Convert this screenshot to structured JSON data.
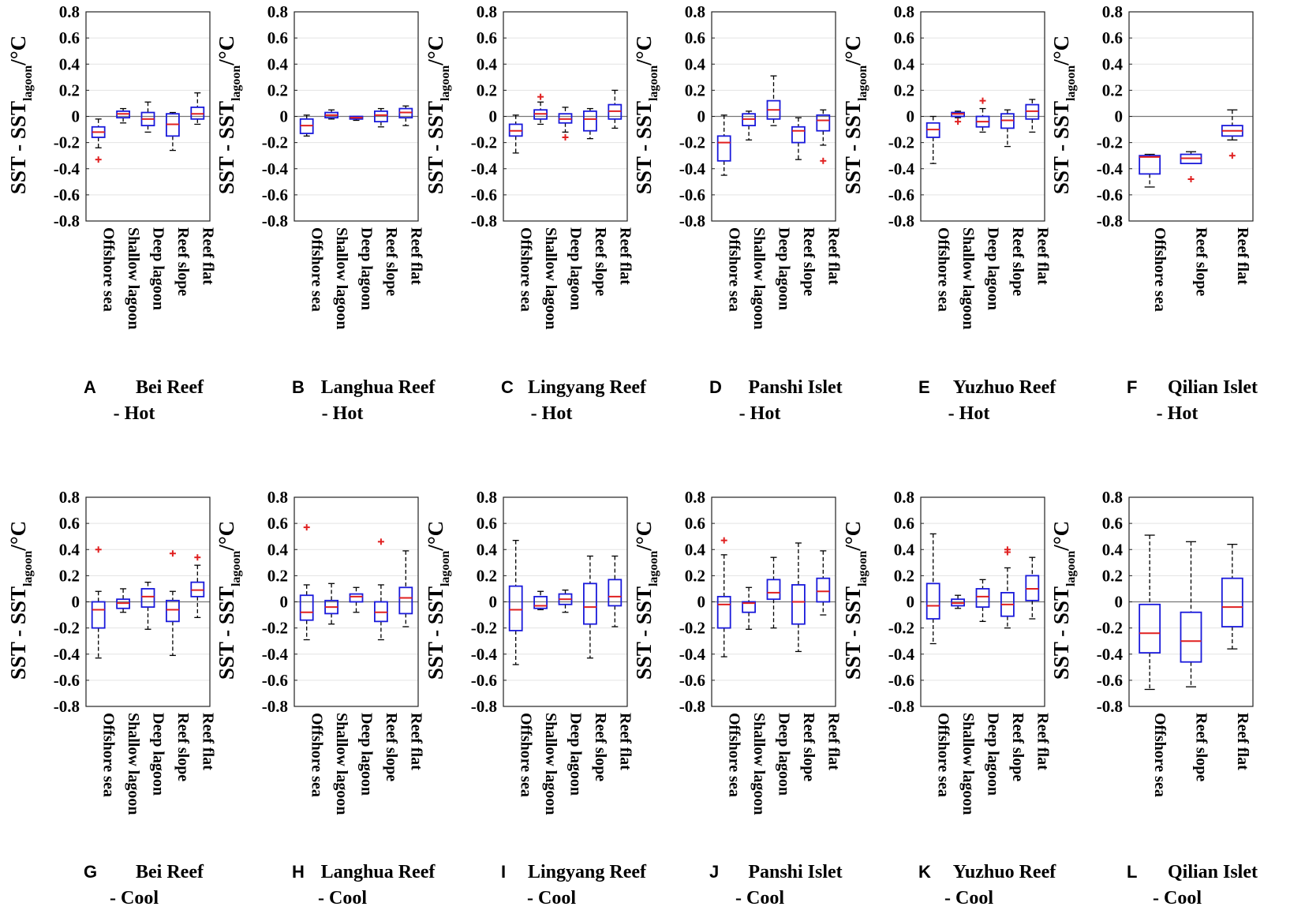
{
  "figure": {
    "ylabel_main": "SST - SST",
    "ylabel_sub": "lagoon",
    "ylabel_unit": "/°C"
  },
  "chart_data": [
    {
      "type": "boxplot",
      "panel": "A",
      "title_line1": "Bei Reef",
      "title_line2": "- Hot",
      "ylabel": "SST - SSTlagoon /°C",
      "ylim": [
        -0.8,
        0.8
      ],
      "yticks": [
        "0.8",
        "0.6",
        "0.4",
        "0.2",
        "0",
        "-0.2",
        "-0.4",
        "-0.6",
        "-0.8"
      ],
      "categories": [
        "Offshore sea",
        "Shallow lagoon",
        "Deep lagoon",
        "Reef slope",
        "Reef flat"
      ],
      "boxes": [
        {
          "min": -0.24,
          "q1": -0.16,
          "median": -0.12,
          "q3": -0.08,
          "max": -0.02,
          "outliers": [
            -0.33
          ]
        },
        {
          "min": -0.05,
          "q1": -0.01,
          "median": 0.02,
          "q3": 0.04,
          "max": 0.06,
          "outliers": []
        },
        {
          "min": -0.12,
          "q1": -0.07,
          "median": -0.02,
          "q3": 0.03,
          "max": 0.11,
          "outliers": []
        },
        {
          "min": -0.26,
          "q1": -0.15,
          "median": -0.06,
          "q3": 0.02,
          "max": 0.03,
          "outliers": []
        },
        {
          "min": -0.06,
          "q1": -0.02,
          "median": 0.02,
          "q3": 0.07,
          "max": 0.18,
          "outliers": []
        }
      ]
    },
    {
      "type": "boxplot",
      "panel": "B",
      "title_line1": "Langhua Reef",
      "title_line2": "- Hot",
      "ylabel": "SST - SSTlagoon /°C",
      "ylim": [
        -0.8,
        0.8
      ],
      "yticks": [
        "0.8",
        "0.6",
        "0.4",
        "0.2",
        "0",
        "-0.2",
        "-0.4",
        "-0.6",
        "-0.8"
      ],
      "categories": [
        "Offshore sea",
        "Shallow lagoon",
        "Deep lagoon",
        "Reef slope",
        "Reef flat"
      ],
      "boxes": [
        {
          "min": -0.15,
          "q1": -0.13,
          "median": -0.07,
          "q3": -0.02,
          "max": 0.01,
          "outliers": []
        },
        {
          "min": -0.02,
          "q1": -0.01,
          "median": 0.01,
          "q3": 0.03,
          "max": 0.05,
          "outliers": []
        },
        {
          "min": -0.03,
          "q1": -0.02,
          "median": -0.01,
          "q3": 0.0,
          "max": 0.0,
          "outliers": []
        },
        {
          "min": -0.08,
          "q1": -0.04,
          "median": 0.01,
          "q3": 0.04,
          "max": 0.06,
          "outliers": []
        },
        {
          "min": -0.07,
          "q1": -0.01,
          "median": 0.03,
          "q3": 0.06,
          "max": 0.08,
          "outliers": []
        }
      ]
    },
    {
      "type": "boxplot",
      "panel": "C",
      "title_line1": "Lingyang Reef",
      "title_line2": "- Hot",
      "ylabel": "SST - SSTlagoon /°C",
      "ylim": [
        -0.8,
        0.8
      ],
      "yticks": [
        "0.8",
        "0.6",
        "0.4",
        "0.2",
        "0",
        "-0.2",
        "-0.4",
        "-0.6",
        "-0.8"
      ],
      "categories": [
        "Offshore sea",
        "Shallow lagoon",
        "Deep lagoon",
        "Reef slope",
        "Reef flat"
      ],
      "boxes": [
        {
          "min": -0.28,
          "q1": -0.15,
          "median": -0.11,
          "q3": -0.06,
          "max": 0.01,
          "outliers": []
        },
        {
          "min": -0.06,
          "q1": -0.02,
          "median": 0.02,
          "q3": 0.05,
          "max": 0.11,
          "outliers": [
            0.15
          ]
        },
        {
          "min": -0.12,
          "q1": -0.05,
          "median": -0.02,
          "q3": 0.02,
          "max": 0.07,
          "outliers": [
            -0.16
          ]
        },
        {
          "min": -0.17,
          "q1": -0.11,
          "median": -0.02,
          "q3": 0.04,
          "max": 0.06,
          "outliers": []
        },
        {
          "min": -0.09,
          "q1": -0.02,
          "median": 0.04,
          "q3": 0.09,
          "max": 0.2,
          "outliers": []
        }
      ]
    },
    {
      "type": "boxplot",
      "panel": "D",
      "title_line1": "Panshi Islet",
      "title_line2": "- Hot",
      "ylabel": "SST - SSTlagoon /°C",
      "ylim": [
        -0.8,
        0.8
      ],
      "yticks": [
        "0.8",
        "0.6",
        "0.4",
        "0.2",
        "0",
        "-0.2",
        "-0.4",
        "-0.6",
        "-0.8"
      ],
      "categories": [
        "Offshore sea",
        "Shallow lagoon",
        "Deep lagoon",
        "Reef slope",
        "Reef flat"
      ],
      "boxes": [
        {
          "min": -0.45,
          "q1": -0.34,
          "median": -0.2,
          "q3": -0.15,
          "max": 0.01,
          "outliers": []
        },
        {
          "min": -0.18,
          "q1": -0.07,
          "median": -0.02,
          "q3": 0.02,
          "max": 0.04,
          "outliers": []
        },
        {
          "min": -0.07,
          "q1": -0.02,
          "median": 0.05,
          "q3": 0.12,
          "max": 0.31,
          "outliers": []
        },
        {
          "min": -0.33,
          "q1": -0.2,
          "median": -0.11,
          "q3": -0.08,
          "max": -0.01,
          "outliers": []
        },
        {
          "min": -0.22,
          "q1": -0.11,
          "median": -0.03,
          "q3": 0.01,
          "max": 0.05,
          "outliers": [
            -0.34
          ]
        }
      ]
    },
    {
      "type": "boxplot",
      "panel": "E",
      "title_line1": "Yuzhuo Reef",
      "title_line2": "- Hot",
      "ylabel": "SST - SSTlagoon /°C",
      "ylim": [
        -0.8,
        0.8
      ],
      "yticks": [
        "0.8",
        "0.6",
        "0.4",
        "0.2",
        "0",
        "-0.2",
        "-0.4",
        "-0.6",
        "-0.8"
      ],
      "categories": [
        "Offshore sea",
        "Shallow lagoon",
        "Deep lagoon",
        "Reef slope",
        "Reef flat"
      ],
      "boxes": [
        {
          "min": -0.36,
          "q1": -0.16,
          "median": -0.1,
          "q3": -0.05,
          "max": 0.0,
          "outliers": []
        },
        {
          "min": -0.01,
          "q1": 0.0,
          "median": 0.02,
          "q3": 0.03,
          "max": 0.04,
          "outliers": [
            -0.04
          ]
        },
        {
          "min": -0.12,
          "q1": -0.08,
          "median": -0.04,
          "q3": 0.0,
          "max": 0.06,
          "outliers": [
            0.12
          ]
        },
        {
          "min": -0.23,
          "q1": -0.09,
          "median": -0.03,
          "q3": 0.02,
          "max": 0.05,
          "outliers": []
        },
        {
          "min": -0.12,
          "q1": -0.02,
          "median": 0.04,
          "q3": 0.09,
          "max": 0.13,
          "outliers": []
        }
      ]
    },
    {
      "type": "boxplot",
      "panel": "F",
      "title_line1": "Qilian Islet",
      "title_line2": "- Hot",
      "ylabel": "SST - SSTlagoon /°C",
      "ylim": [
        -0.8,
        0.8
      ],
      "yticks": [
        "0.8",
        "0.6",
        "0.4",
        "0.2",
        "0",
        "-0.2",
        "-0.4",
        "-0.6",
        "-0.8"
      ],
      "categories": [
        "Offshore sea",
        "Reef slope",
        "Reef flat"
      ],
      "boxes": [
        {
          "min": -0.54,
          "q1": -0.44,
          "median": -0.31,
          "q3": -0.3,
          "max": -0.29,
          "outliers": []
        },
        {
          "min": -0.36,
          "q1": -0.36,
          "median": -0.32,
          "q3": -0.29,
          "max": -0.27,
          "outliers": [
            -0.48
          ]
        },
        {
          "min": -0.18,
          "q1": -0.15,
          "median": -0.11,
          "q3": -0.07,
          "max": 0.05,
          "outliers": [
            -0.3
          ]
        }
      ]
    },
    {
      "type": "boxplot",
      "panel": "G",
      "title_line1": "Bei Reef",
      "title_line2": "- Cool",
      "ylabel": "SST - SSTlagoon /°C",
      "ylim": [
        -0.8,
        0.8
      ],
      "yticks": [
        "0.8",
        "0.6",
        "0.4",
        "0.2",
        "0",
        "-0.2",
        "-0.4",
        "-0.6",
        "-0.8"
      ],
      "categories": [
        "Offshore sea",
        "Shallow lagoon",
        "Deep lagoon",
        "Reef slope",
        "Reef flat"
      ],
      "boxes": [
        {
          "min": -0.43,
          "q1": -0.2,
          "median": -0.06,
          "q3": 0.0,
          "max": 0.08,
          "outliers": [
            0.4
          ]
        },
        {
          "min": -0.08,
          "q1": -0.05,
          "median": -0.01,
          "q3": 0.02,
          "max": 0.1,
          "outliers": []
        },
        {
          "min": -0.21,
          "q1": -0.04,
          "median": 0.04,
          "q3": 0.1,
          "max": 0.15,
          "outliers": []
        },
        {
          "min": -0.41,
          "q1": -0.15,
          "median": -0.06,
          "q3": 0.01,
          "max": 0.08,
          "outliers": [
            0.37
          ]
        },
        {
          "min": -0.12,
          "q1": 0.04,
          "median": 0.09,
          "q3": 0.15,
          "max": 0.28,
          "outliers": [
            0.34
          ]
        }
      ]
    },
    {
      "type": "boxplot",
      "panel": "H",
      "title_line1": "Langhua Reef",
      "title_line2": "- Cool",
      "ylabel": "SST - SSTlagoon /°C",
      "ylim": [
        -0.8,
        0.8
      ],
      "yticks": [
        "0.8",
        "0.6",
        "0.4",
        "0.2",
        "0",
        "-0.2",
        "-0.4",
        "-0.6",
        "-0.8"
      ],
      "categories": [
        "Offshore sea",
        "Shallow lagoon",
        "Deep lagoon",
        "Reef slope",
        "Reef flat"
      ],
      "boxes": [
        {
          "min": -0.29,
          "q1": -0.14,
          "median": -0.08,
          "q3": 0.05,
          "max": 0.13,
          "outliers": [
            0.57
          ]
        },
        {
          "min": -0.17,
          "q1": -0.09,
          "median": -0.04,
          "q3": 0.01,
          "max": 0.14,
          "outliers": []
        },
        {
          "min": -0.08,
          "q1": 0.0,
          "median": 0.04,
          "q3": 0.06,
          "max": 0.11,
          "outliers": []
        },
        {
          "min": -0.29,
          "q1": -0.15,
          "median": -0.08,
          "q3": 0.0,
          "max": 0.13,
          "outliers": [
            0.46
          ]
        },
        {
          "min": -0.19,
          "q1": -0.09,
          "median": 0.03,
          "q3": 0.11,
          "max": 0.39,
          "outliers": []
        }
      ]
    },
    {
      "type": "boxplot",
      "panel": "I",
      "title_line1": "Lingyang Reef",
      "title_line2": "- Cool",
      "ylabel": "SST - SSTlagoon /°C",
      "ylim": [
        -0.8,
        0.8
      ],
      "yticks": [
        "0.8",
        "0.6",
        "0.4",
        "0.2",
        "0",
        "-0.2",
        "-0.4",
        "-0.6",
        "-0.8"
      ],
      "categories": [
        "Offshore sea",
        "Shallow lagoon",
        "Deep lagoon",
        "Reef slope",
        "Reef flat"
      ],
      "boxes": [
        {
          "min": -0.48,
          "q1": -0.22,
          "median": -0.06,
          "q3": 0.12,
          "max": 0.47,
          "outliers": []
        },
        {
          "min": -0.06,
          "q1": -0.05,
          "median": -0.03,
          "q3": 0.04,
          "max": 0.08,
          "outliers": []
        },
        {
          "min": -0.08,
          "q1": -0.02,
          "median": 0.02,
          "q3": 0.06,
          "max": 0.09,
          "outliers": []
        },
        {
          "min": -0.43,
          "q1": -0.17,
          "median": -0.04,
          "q3": 0.14,
          "max": 0.35,
          "outliers": []
        },
        {
          "min": -0.19,
          "q1": -0.03,
          "median": 0.04,
          "q3": 0.17,
          "max": 0.35,
          "outliers": []
        }
      ]
    },
    {
      "type": "boxplot",
      "panel": "J",
      "title_line1": "Panshi Islet",
      "title_line2": "- Cool",
      "ylabel": "SST - SSTlagoon /°C",
      "ylim": [
        -0.8,
        0.8
      ],
      "yticks": [
        "0.8",
        "0.6",
        "0.4",
        "0.2",
        "0",
        "-0.2",
        "-0.4",
        "-0.6",
        "-0.8"
      ],
      "categories": [
        "Offshore sea",
        "Shallow lagoon",
        "Deep lagoon",
        "Reef slope",
        "Reef flat"
      ],
      "boxes": [
        {
          "min": -0.42,
          "q1": -0.2,
          "median": -0.02,
          "q3": 0.04,
          "max": 0.36,
          "outliers": [
            0.47
          ]
        },
        {
          "min": -0.21,
          "q1": -0.08,
          "median": -0.01,
          "q3": 0.0,
          "max": 0.11,
          "outliers": []
        },
        {
          "min": -0.2,
          "q1": 0.02,
          "median": 0.07,
          "q3": 0.17,
          "max": 0.34,
          "outliers": []
        },
        {
          "min": -0.38,
          "q1": -0.17,
          "median": 0.0,
          "q3": 0.13,
          "max": 0.45,
          "outliers": []
        },
        {
          "min": -0.1,
          "q1": 0.0,
          "median": 0.08,
          "q3": 0.18,
          "max": 0.39,
          "outliers": []
        }
      ]
    },
    {
      "type": "boxplot",
      "panel": "K",
      "title_line1": "Yuzhuo Reef",
      "title_line2": "- Cool",
      "ylabel": "SST - SSTlagoon /°C",
      "ylim": [
        -0.8,
        0.8
      ],
      "yticks": [
        "0.8",
        "0.6",
        "0.4",
        "0.2",
        "0",
        "-0.2",
        "-0.4",
        "-0.6",
        "-0.8"
      ],
      "categories": [
        "Offshore sea",
        "Shallow lagoon",
        "Deep lagoon",
        "Reef slope",
        "Reef flat"
      ],
      "boxes": [
        {
          "min": -0.32,
          "q1": -0.13,
          "median": -0.03,
          "q3": 0.14,
          "max": 0.52,
          "outliers": []
        },
        {
          "min": -0.05,
          "q1": -0.03,
          "median": -0.01,
          "q3": 0.02,
          "max": 0.05,
          "outliers": []
        },
        {
          "min": -0.15,
          "q1": -0.04,
          "median": 0.04,
          "q3": 0.1,
          "max": 0.17,
          "outliers": []
        },
        {
          "min": -0.2,
          "q1": -0.11,
          "median": -0.02,
          "q3": 0.07,
          "max": 0.26,
          "outliers": [
            0.38,
            0.4
          ]
        },
        {
          "min": -0.13,
          "q1": 0.01,
          "median": 0.1,
          "q3": 0.2,
          "max": 0.34,
          "outliers": []
        }
      ]
    },
    {
      "type": "boxplot",
      "panel": "L",
      "title_line1": "Qilian Islet",
      "title_line2": "- Cool",
      "ylabel": "SST - SSTlagoon /°C",
      "ylim": [
        -0.8,
        0.8
      ],
      "yticks": [
        "0.8",
        "0.6",
        "0.4",
        "0.2",
        "0",
        "-0.2",
        "-0.4",
        "-0.6",
        "-0.8"
      ],
      "categories": [
        "Offshore sea",
        "Reef slope",
        "Reef flat"
      ],
      "boxes": [
        {
          "min": -0.67,
          "q1": -0.39,
          "median": -0.24,
          "q3": -0.02,
          "max": 0.51,
          "outliers": []
        },
        {
          "min": -0.65,
          "q1": -0.46,
          "median": -0.3,
          "q3": -0.08,
          "max": 0.46,
          "outliers": []
        },
        {
          "min": -0.36,
          "q1": -0.19,
          "median": -0.04,
          "q3": 0.18,
          "max": 0.44,
          "outliers": []
        }
      ]
    }
  ]
}
